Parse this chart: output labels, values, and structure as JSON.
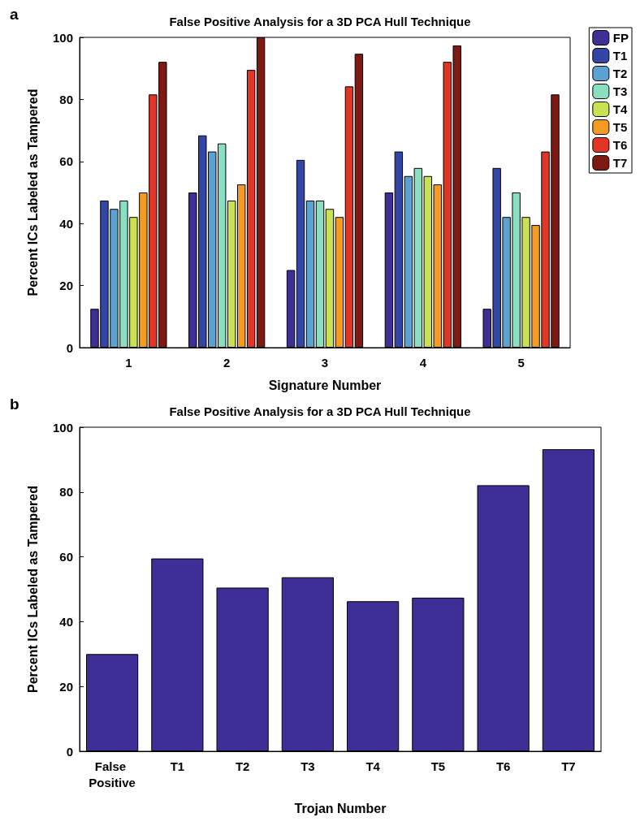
{
  "chart_data": [
    {
      "type": "bar",
      "title": "False Positive Analysis for a 3D PCA Hull Technique",
      "xlabel": "Signature Number",
      "ylabel": "Percent ICs Labeled as Tampered",
      "annotations": [
        "a"
      ],
      "categories": [
        "1",
        "2",
        "3",
        "4",
        "5"
      ],
      "series": [
        {
          "name": "FP",
          "color": "#3d2f95",
          "values": [
            12.5,
            50,
            25,
            50,
            12.5
          ]
        },
        {
          "name": "T1",
          "color": "#3346a6",
          "values": [
            47.4,
            68.4,
            60.5,
            63.2,
            57.9
          ]
        },
        {
          "name": "T2",
          "color": "#5ba2d3",
          "values": [
            44.7,
            63.2,
            47.4,
            55.3,
            42.1
          ]
        },
        {
          "name": "T3",
          "color": "#89dfbf",
          "values": [
            47.4,
            65.8,
            47.4,
            57.9,
            50
          ]
        },
        {
          "name": "T4",
          "color": "#c9e253",
          "values": [
            42.1,
            47.4,
            44.7,
            55.3,
            42.1
          ]
        },
        {
          "name": "T5",
          "color": "#f59b23",
          "values": [
            50,
            52.6,
            42.1,
            52.6,
            39.5
          ]
        },
        {
          "name": "T6",
          "color": "#e13526",
          "values": [
            81.6,
            89.5,
            84.2,
            92.1,
            63.2
          ]
        },
        {
          "name": "T7",
          "color": "#7f1914",
          "values": [
            92.1,
            100,
            94.7,
            97.4,
            81.6
          ]
        }
      ],
      "ylim": [
        0,
        100
      ],
      "yticks": [
        0,
        20,
        40,
        60,
        80,
        100
      ],
      "grid": false,
      "legend": "top right"
    },
    {
      "type": "bar",
      "title": "False Positive Analysis for a 3D PCA Hull Technique",
      "xlabel": "Trojan Number",
      "ylabel": "Percent ICs Labeled as Tampered",
      "annotations": [
        "b"
      ],
      "categories": [
        "False Positive",
        "T1",
        "T2",
        "T3",
        "T4",
        "T5",
        "T6",
        "T7"
      ],
      "values": [
        30,
        59.5,
        50.5,
        53.7,
        46.3,
        47.4,
        82.1,
        93.2
      ],
      "color": "#3d2f95",
      "ylim": [
        0,
        100
      ],
      "yticks": [
        0,
        20,
        40,
        60,
        80,
        100
      ],
      "grid": false,
      "legend": false
    }
  ]
}
